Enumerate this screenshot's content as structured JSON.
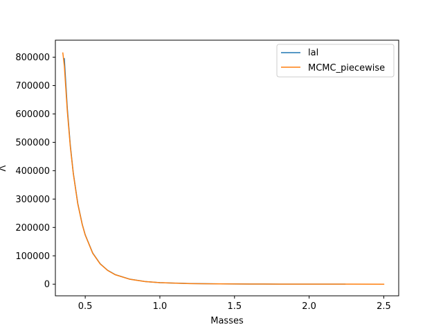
{
  "chart_data": {
    "type": "line",
    "xlabel": "Masses",
    "ylabel": "Λ",
    "xlim": [
      0.3,
      2.6
    ],
    "ylim": [
      -41000,
      860000
    ],
    "xticks": [
      0.5,
      1.0,
      1.5,
      2.0,
      2.5
    ],
    "xtick_labels": [
      "0.5",
      "1.0",
      "1.5",
      "2.0",
      "2.5"
    ],
    "yticks": [
      0,
      100000,
      200000,
      300000,
      400000,
      500000,
      600000,
      700000,
      800000
    ],
    "ytick_labels": [
      "0",
      "100000",
      "200000",
      "300000",
      "400000",
      "500000",
      "600000",
      "700000",
      "800000"
    ],
    "grid": false,
    "legend_position": "top-right",
    "series": [
      {
        "name": "lal",
        "color": "#1f77b4",
        "x": [
          0.36,
          0.38,
          0.4,
          0.42,
          0.45,
          0.48,
          0.5,
          0.55,
          0.6,
          0.65,
          0.7,
          0.8,
          0.9,
          1.0,
          1.2,
          1.4,
          1.6,
          1.8,
          2.0,
          2.24
        ],
        "y": [
          795000,
          620000,
          490000,
          392000,
          285000,
          211000,
          174000,
          110000,
          72000,
          49000,
          34000,
          17500,
          9500,
          5500,
          2200,
          1000,
          500,
          280,
          160,
          80
        ]
      },
      {
        "name": "MCMC_piecewise",
        "color": "#ff7f0e",
        "x": [
          0.35,
          0.36,
          0.38,
          0.4,
          0.42,
          0.45,
          0.48,
          0.5,
          0.55,
          0.6,
          0.65,
          0.7,
          0.8,
          0.9,
          1.0,
          1.2,
          1.4,
          1.6,
          1.8,
          2.0,
          2.2,
          2.5
        ],
        "y": [
          815000,
          770000,
          610000,
          485000,
          390000,
          283000,
          210000,
          173000,
          109000,
          71500,
          48500,
          33500,
          17200,
          9400,
          5400,
          2150,
          980,
          490,
          270,
          150,
          90,
          40
        ]
      }
    ]
  }
}
